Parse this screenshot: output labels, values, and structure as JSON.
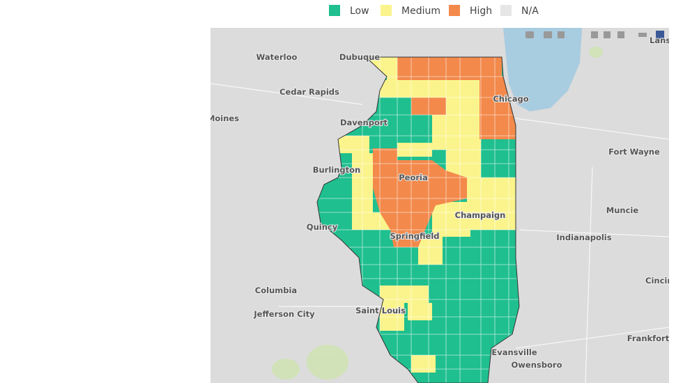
{
  "legend": [
    {
      "label": "Low",
      "color": "#1fbf8f"
    },
    {
      "label": "Medium",
      "color": "#fbf48c"
    },
    {
      "label": "High",
      "color": "#f3894b"
    },
    {
      "label": "N/A",
      "color": "#e6e6e6"
    }
  ],
  "cities": [
    "Waterloo",
    "Dubuque",
    "Cedar Rapids",
    "Moines",
    "Davenport",
    "Burlington",
    "Peoria",
    "Quincy",
    "Champaign",
    "Springfield",
    "Chicago",
    "Fort Wayne",
    "Muncie",
    "Indianapolis",
    "Columbia",
    "Jefferson City",
    "Saint Louis",
    "Cincin",
    "Frankfort",
    "Evansville",
    "Owensboro",
    "Lansi"
  ]
}
